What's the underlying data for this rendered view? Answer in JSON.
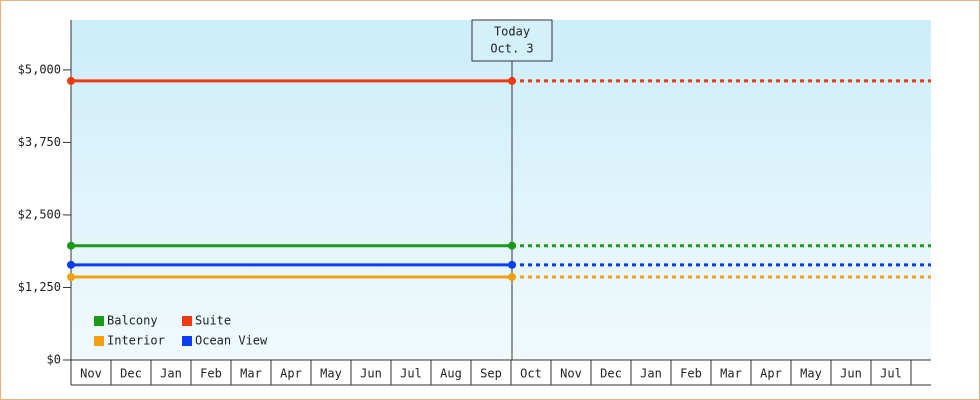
{
  "chart_data": {
    "type": "line",
    "categories": [
      "Nov",
      "Dec",
      "Jan",
      "Feb",
      "Mar",
      "Apr",
      "May",
      "Jun",
      "Jul",
      "Aug",
      "Sep",
      "Oct",
      "Nov",
      "Dec",
      "Jan",
      "Feb",
      "Mar",
      "Apr",
      "May",
      "Jun",
      "Jul",
      null
    ],
    "series": [
      {
        "name": "Balcony",
        "color": "#199a19",
        "value": 1970
      },
      {
        "name": "Suite",
        "color": "#ee3a10",
        "value": 4810
      },
      {
        "name": "Interior",
        "color": "#f0a010",
        "value": 1430
      },
      {
        "name": "Ocean View",
        "color": "#0a3ef0",
        "value": 1640
      }
    ],
    "ylim": [
      0,
      5860
    ],
    "yticks": [
      {
        "value": 0,
        "label": "$0"
      },
      {
        "value": 1250,
        "label": "$1,250"
      },
      {
        "value": 2500,
        "label": "$2,500"
      },
      {
        "value": 3750,
        "label": "$3,750"
      },
      {
        "value": 5000,
        "label": "$5,000"
      }
    ],
    "today": {
      "label": "Today",
      "date": "Oct. 3"
    },
    "legend": "lower left"
  }
}
